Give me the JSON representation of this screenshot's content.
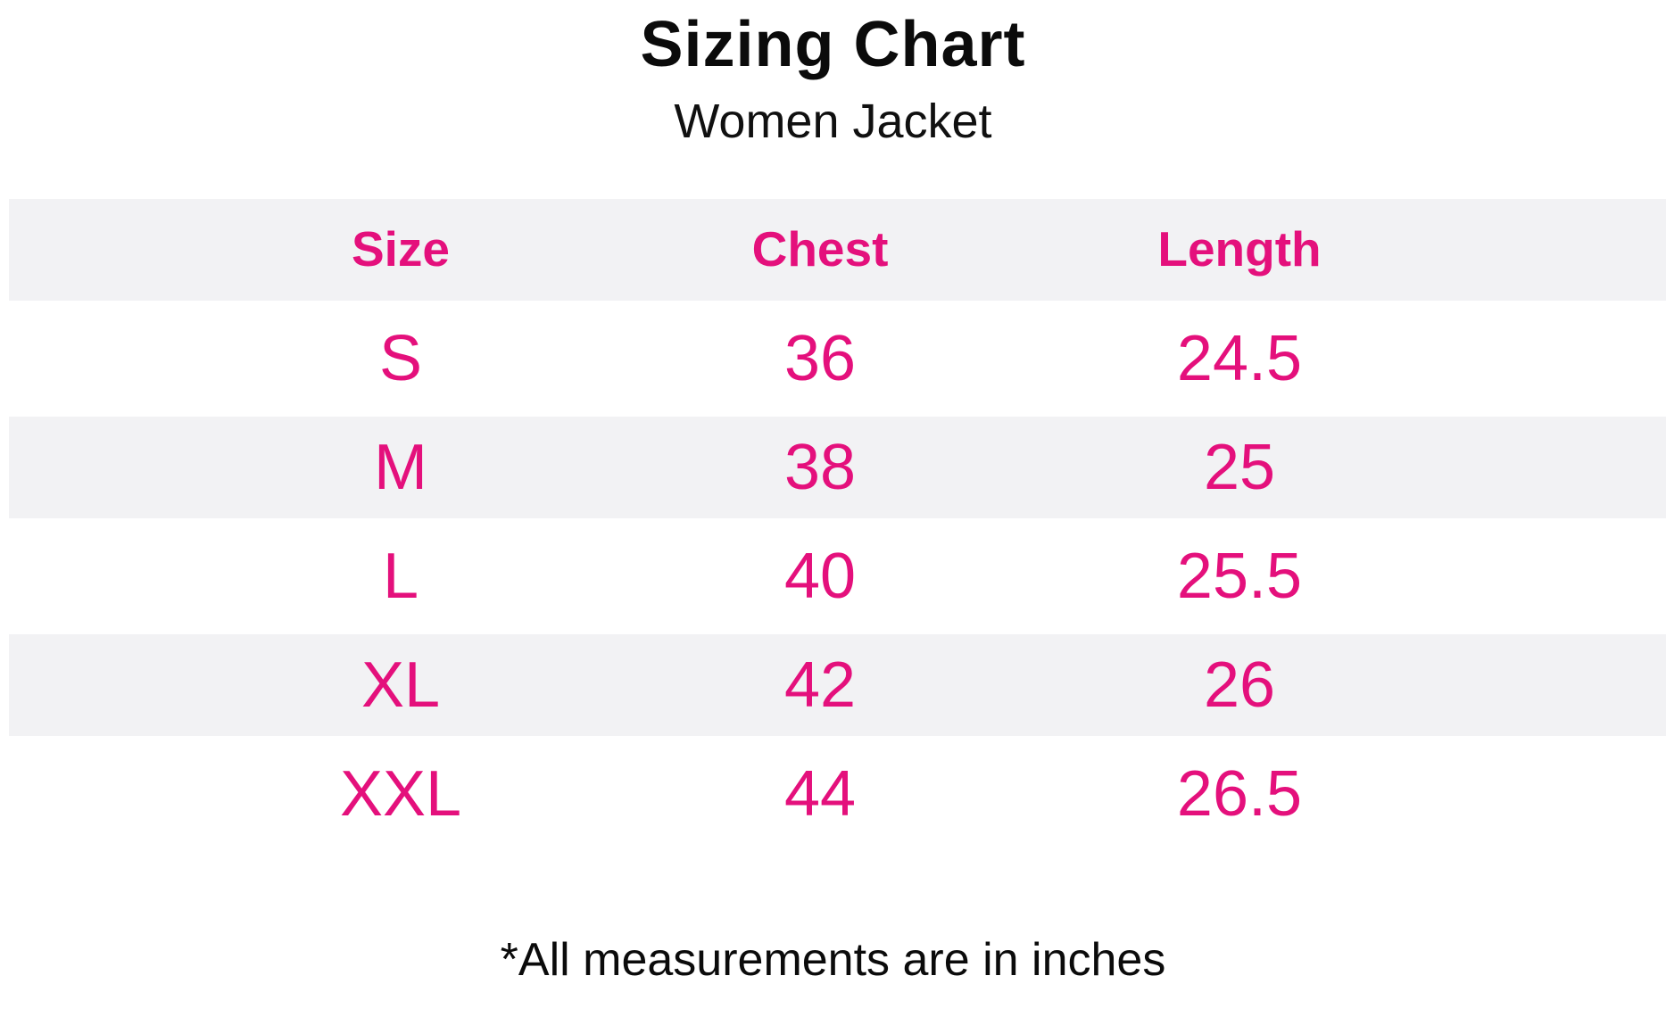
{
  "page": {
    "title": "Sizing Chart",
    "subtitle": "Women Jacket",
    "footnote": "*All measurements are in inches"
  },
  "colors": {
    "accent_pink": "#E4107C",
    "row_alt_gray": "#F2F2F4",
    "text_black": "#0b0b0b",
    "background": "#ffffff"
  },
  "chart_data": {
    "type": "table",
    "title": "Sizing Chart",
    "subtitle": "Women Jacket",
    "columns": [
      "Size",
      "Chest",
      "Length"
    ],
    "rows": [
      [
        "S",
        "36",
        "24.5"
      ],
      [
        "M",
        "38",
        "25"
      ],
      [
        "L",
        "40",
        "25.5"
      ],
      [
        "XL",
        "42",
        "26"
      ],
      [
        "XXL",
        "44",
        "26.5"
      ]
    ],
    "units": "inches",
    "note": "*All measurements are in inches",
    "layout": {
      "alternating_rows": "header gray, then white/gray alternating",
      "grid": false,
      "text_alignment": "center"
    }
  }
}
